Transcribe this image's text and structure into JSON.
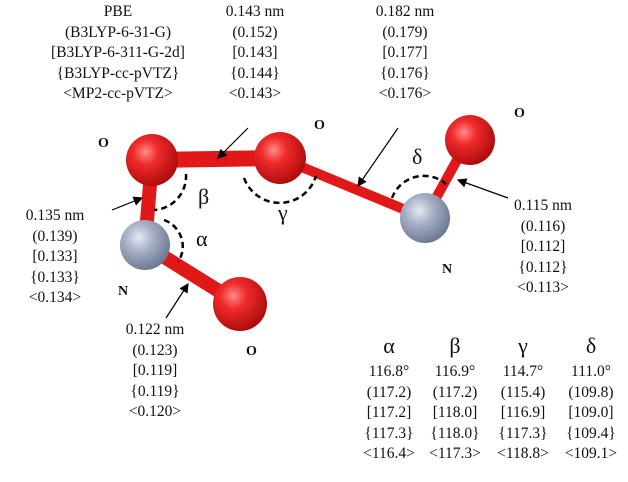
{
  "methods_legend": [
    "PBE",
    "(B3LYP-6-31-G)",
    "[B3LYP-6-311-G-2d]",
    "{B3LYP-cc-pVTZ}",
    "<MP2-cc-pVTZ>"
  ],
  "bond_labels": {
    "o1_o2": [
      "0.143 nm",
      "(0.152)",
      "[0.143]",
      "{0.144}",
      "<0.143>"
    ],
    "o2_n2": [
      "0.182 nm",
      "(0.179)",
      "[0.177]",
      "{0.176}",
      "<0.176>"
    ],
    "n1_o1": [
      "0.135 nm",
      "(0.139)",
      "[0.133]",
      "{0.133}",
      "<0.134>"
    ],
    "n1_o4": [
      "0.122 nm",
      "(0.123)",
      "[0.119]",
      "{0.119}",
      "<0.120>"
    ],
    "n2_o3": [
      "0.115 nm",
      "(0.116)",
      "[0.112]",
      "{0.112}",
      "<0.113>"
    ]
  },
  "atom_labels": {
    "o1": "O",
    "o2": "O",
    "o3": "O",
    "n1": "N",
    "n2": "N",
    "o4": "O"
  },
  "angle_labels": {
    "alpha": "α",
    "beta": "β",
    "gamma": "γ",
    "delta": "δ"
  },
  "angle_table": {
    "columns": [
      {
        "symbol": "α",
        "values": [
          "116.8°",
          "(117.2)",
          "[117.2]",
          "{117.3}",
          "<116.4>"
        ]
      },
      {
        "symbol": "β",
        "values": [
          "116.9°",
          "(117.2)",
          "[118.0]",
          "{118.0}",
          "<117.3>"
        ]
      },
      {
        "symbol": "γ",
        "values": [
          "114.7°",
          "(115.4)",
          "[116.9]",
          "{117.3}",
          "<118.8>"
        ]
      },
      {
        "symbol": "δ",
        "values": [
          "111.0°",
          "(109.8)",
          "[109.0]",
          "{109.4}",
          "<109.1>"
        ]
      }
    ]
  },
  "colors": {
    "oxygen": "#e8141c",
    "nitrogen": "#9aa4bd",
    "arc": "#000000"
  }
}
